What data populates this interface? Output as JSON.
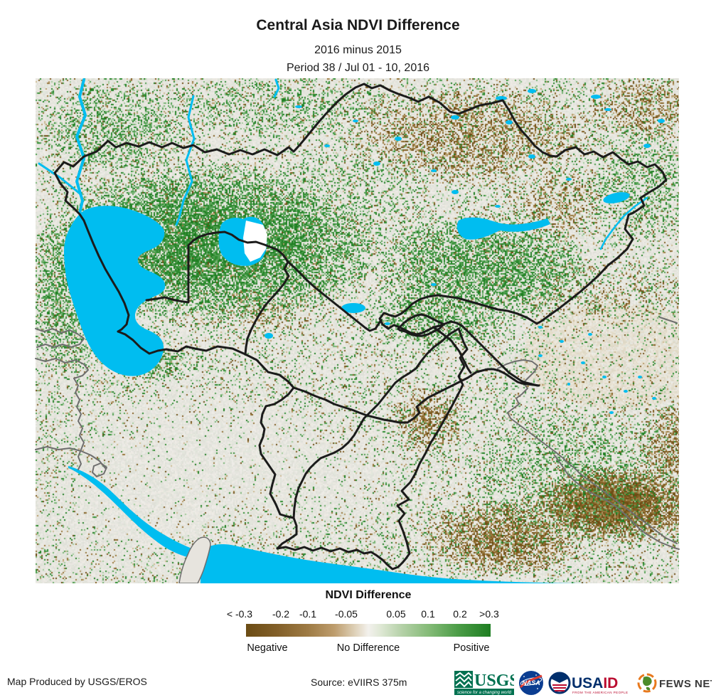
{
  "header": {
    "title": "Central Asia NDVI Difference",
    "subtitle1": "2016 minus 2015",
    "subtitle2": "Period 38 / Jul 01 - 10, 2016"
  },
  "legend": {
    "title": "NDVI Difference",
    "ticks": [
      "< -0.3",
      "-0.2",
      "-0.1",
      "-0.05",
      "0.05",
      "0.1",
      "0.2",
      ">0.3"
    ],
    "labels": [
      "Negative",
      "No Difference",
      "Positive"
    ],
    "gradient": [
      "#6b4c14",
      "#83602a",
      "#9d7a43",
      "#bd9c6c",
      "#e0d4bd",
      "#f3f1ed",
      "#dfe8d5",
      "#b3d0a6",
      "#83ba76",
      "#4a9c46",
      "#1e7e22"
    ],
    "gradient_stops": [
      0,
      13,
      25,
      36,
      45,
      50,
      55,
      64,
      75,
      87,
      100
    ]
  },
  "footer": {
    "produced_by": "Map Produced by USGS/EROS",
    "source": "Source: eVIIRS 375m",
    "logos": {
      "usgs": {
        "name": "USGS",
        "tagline": "science for a changing world"
      },
      "nasa": {
        "name": "NASA"
      },
      "usaid": {
        "name_blue": "USA",
        "name_red": "ID",
        "tagline": "FROM THE AMERICAN PEOPLE"
      },
      "fewsnet": {
        "name": "FEWS NET"
      }
    }
  },
  "map": {
    "colors": {
      "water": "#00BDF0",
      "land_base": "#E9E7E2",
      "border_black": "#1b1b1b",
      "border_gray": "#6e6e6e",
      "negative_dark": "#6B4C14",
      "positive_dark": "#1E7E22"
    },
    "palette": {
      "greens": [
        "#1f7e22",
        "#2e8c30",
        "#4f9e4f",
        "#79b476",
        "#a3cb9c"
      ],
      "browns": [
        "#6b4c14",
        "#7f5c20",
        "#97763b",
        "#b59a67",
        "#cdbb94"
      ],
      "base": [
        "#e9e7e2",
        "#e4e4dd",
        "#eeece7",
        "#e2e6dc",
        "#ece9e1",
        "#dfe0d8"
      ],
      "tan": [
        "#e7e1d3",
        "#e3dcc9",
        "#ece7da",
        "#ded8c6"
      ]
    }
  }
}
